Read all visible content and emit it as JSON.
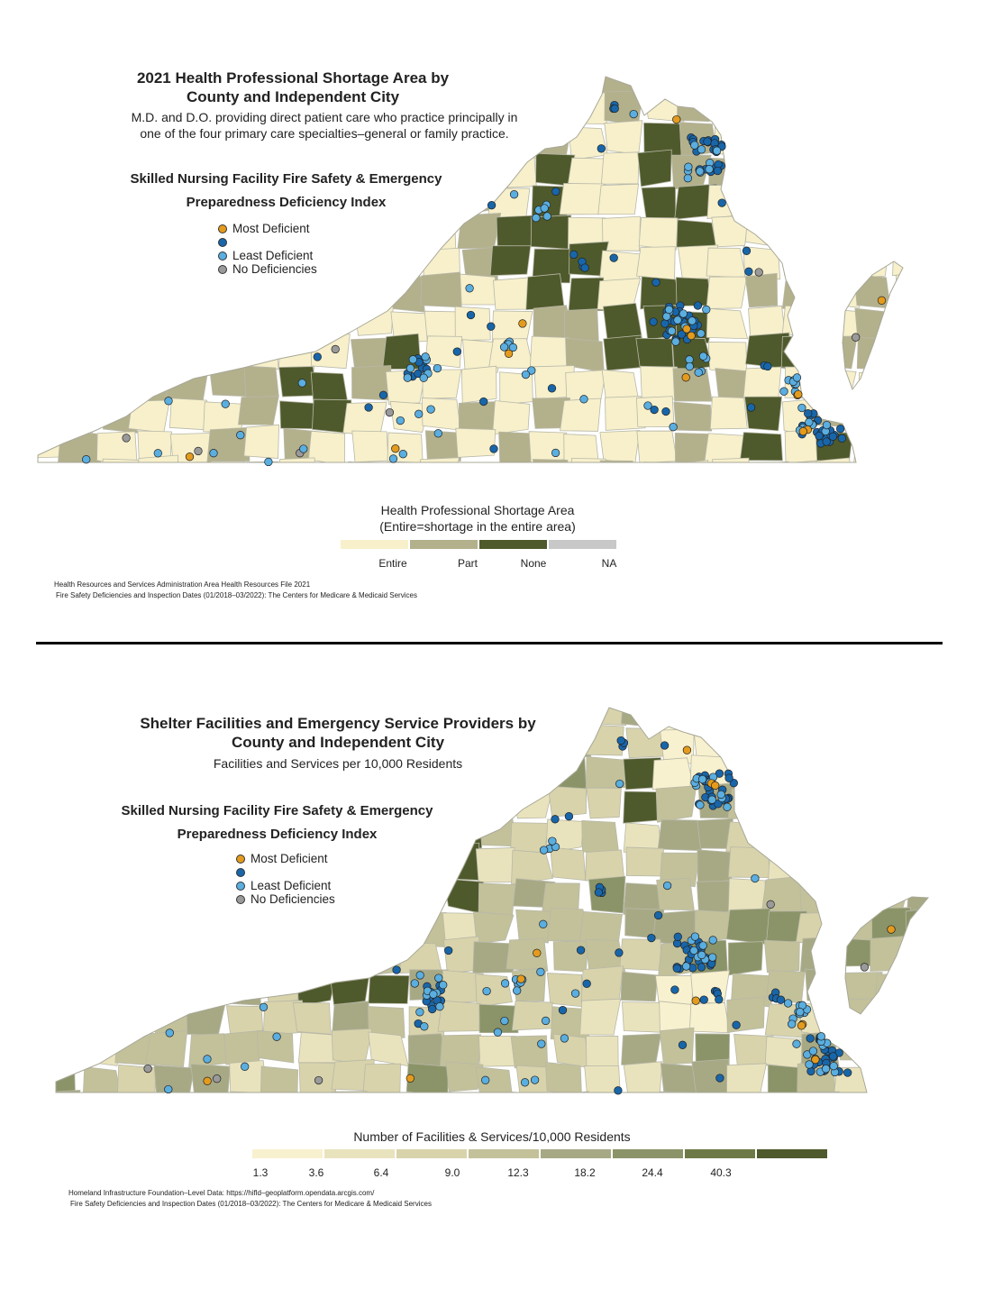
{
  "colors": {
    "entire": "#f7f0cb",
    "part": "#b3b08c",
    "none": "#4f5a2c",
    "na": "#c8c8c8",
    "most_deficient": "#e49b1d",
    "mid_deficient": "#1866aa",
    "least_deficient": "#5aaee0",
    "no_deficiencies": "#9a9a9a",
    "county_border": "#b8b8a8"
  },
  "map1": {
    "title_line1": "2021 Health Professional Shortage Area by",
    "title_line2": "County and Independent City",
    "subtitle_line1": "M.D. and D.O. providing direct patient care who practice principally in",
    "subtitle_line2": "one of the four primary care specialties–general or family practice.",
    "index_title_line1": "Skilled Nursing Facility Fire Safety & Emergency",
    "index_title_line2": "Preparedness Deficiency Index",
    "point_legend": [
      "Most Deficient",
      "",
      "Least Deficient",
      "No Deficiencies"
    ],
    "legend_title_line1": "Health Professional Shortage Area",
    "legend_title_line2": "(Entire=shortage in the entire area)",
    "legend_labels": [
      "Entire",
      "Part",
      "None",
      "NA"
    ],
    "source_line1": "Health Resources and Services Administration Area Health Resources File 2021",
    "source_line2": "Fire Safety Deficiencies and Inspection Dates (01/2018–03/2022): The Centers for Medicare & Medicaid Services"
  },
  "map2": {
    "title_line1": "Shelter Facilities and Emergency Service Providers by",
    "title_line2": "County and Independent City",
    "subtitle_line1": "Facilities and Services per 10,000 Residents",
    "index_title_line1": "Skilled Nursing Facility Fire Safety & Emergency",
    "index_title_line2": "Preparedness Deficiency Index",
    "point_legend": [
      "Most Deficient",
      "",
      "Least Deficient",
      "No Deficiencies"
    ],
    "legend_title": "Number of Facilities & Services/10,000 Residents",
    "legend_labels": [
      "1.3",
      "3.6",
      "6.4",
      "9.0",
      "12.3",
      "18.2",
      "24.4",
      "40.3"
    ],
    "legend_colors": [
      "#f8f1cf",
      "#e9e3bd",
      "#d8d3ab",
      "#c3c19a",
      "#a7a985",
      "#8b9468",
      "#6d7a47",
      "#4f5a2c"
    ],
    "source_line1": "Homeland Infrastructure Foundation–Level Data: https://hifld–geoplatform.opendata.arcgis.com/",
    "source_line2": "Fire Safety Deficiencies and Inspection Dates (01/2018–03/2022): The Centers for Medicare & Medicaid Services"
  }
}
